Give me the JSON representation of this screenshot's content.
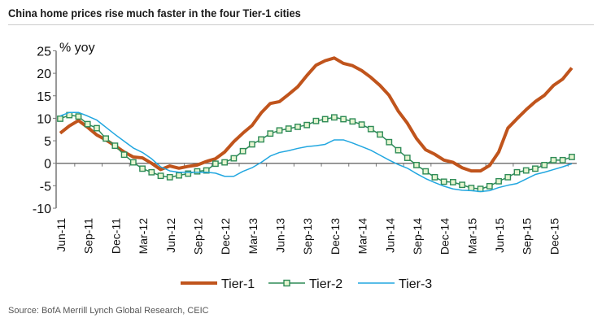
{
  "title": "China home prices rise much faster in the four Tier-1 cities",
  "source": "Source:  BofA Merrill Lynch Global Research, CEIC",
  "chart_data": {
    "type": "line",
    "title": "China home prices rise much faster in the four Tier-1 cities",
    "ylabel": "% yoy",
    "ylim": [
      -10,
      25
    ],
    "yticks": [
      -10,
      -5,
      0,
      5,
      10,
      15,
      20,
      25
    ],
    "x_start": "Jun-11",
    "x_end": "Feb-16",
    "x_frequency": "monthly",
    "xtick_labels": [
      "Jun-11",
      "Sep-11",
      "Dec-11",
      "Mar-12",
      "Jun-12",
      "Sep-12",
      "Dec-12",
      "Mar-13",
      "Jun-13",
      "Sep-13",
      "Dec-13",
      "Mar-14",
      "Jun-14",
      "Sep-14",
      "Dec-14",
      "Mar-15",
      "Jun-15",
      "Sep-15",
      "Dec-15"
    ],
    "grid": false,
    "legend": "bottom",
    "series": [
      {
        "name": "Tier-1",
        "color": "#c0541c",
        "marker": "none",
        "values": [
          6.7,
          8.3,
          9.5,
          8.0,
          6.3,
          5.2,
          3.9,
          2.5,
          1.4,
          1.2,
          0.0,
          -1.4,
          -0.6,
          -1.1,
          -0.7,
          -0.4,
          0.4,
          1.0,
          2.5,
          4.8,
          6.7,
          8.4,
          11.2,
          13.3,
          13.7,
          15.3,
          17.0,
          19.5,
          21.8,
          22.8,
          23.4,
          22.2,
          21.7,
          20.6,
          19.1,
          17.3,
          15.1,
          11.6,
          8.9,
          5.5,
          3.0,
          2.0,
          0.7,
          0.2,
          -1.0,
          -1.7,
          -1.7,
          -0.5,
          2.5,
          7.8,
          9.9,
          11.9,
          13.7,
          15.1,
          17.3,
          18.7,
          21.2
        ]
      },
      {
        "name": "Tier-2",
        "color": "#2e8b57",
        "marker": "square",
        "values": [
          9.9,
          10.7,
          10.4,
          8.7,
          7.8,
          5.5,
          3.9,
          1.9,
          0.2,
          -1.2,
          -2.0,
          -2.8,
          -3.1,
          -2.7,
          -2.3,
          -1.8,
          -1.6,
          -0.1,
          0.2,
          1.1,
          2.7,
          4.2,
          5.3,
          6.6,
          7.3,
          7.7,
          8.1,
          8.5,
          9.4,
          9.8,
          10.2,
          9.8,
          9.3,
          8.6,
          7.6,
          6.4,
          4.7,
          2.9,
          1.2,
          -0.4,
          -1.8,
          -3.1,
          -4.1,
          -4.2,
          -4.8,
          -5.5,
          -5.7,
          -5.1,
          -4.0,
          -3.1,
          -2.0,
          -1.6,
          -1.2,
          -0.4,
          0.7,
          0.7,
          1.4
        ]
      },
      {
        "name": "Tier-3",
        "color": "#22a7e0",
        "marker": "none",
        "values": [
          10.5,
          11.3,
          11.3,
          10.5,
          9.6,
          8.0,
          6.4,
          4.9,
          3.4,
          2.4,
          1.0,
          -0.8,
          -1.7,
          -2.0,
          -2.0,
          -2.0,
          -2.0,
          -2.2,
          -2.9,
          -2.9,
          -1.8,
          -1.0,
          0.2,
          1.6,
          2.4,
          2.8,
          3.3,
          3.7,
          3.9,
          4.2,
          5.2,
          5.2,
          4.5,
          3.7,
          2.9,
          1.8,
          0.7,
          -0.3,
          -1.1,
          -2.3,
          -3.4,
          -4.3,
          -5.1,
          -5.7,
          -6.0,
          -6.1,
          -6.3,
          -6.1,
          -5.4,
          -4.9,
          -4.5,
          -3.5,
          -2.5,
          -2.0,
          -1.4,
          -0.8,
          -0.1
        ]
      }
    ]
  }
}
